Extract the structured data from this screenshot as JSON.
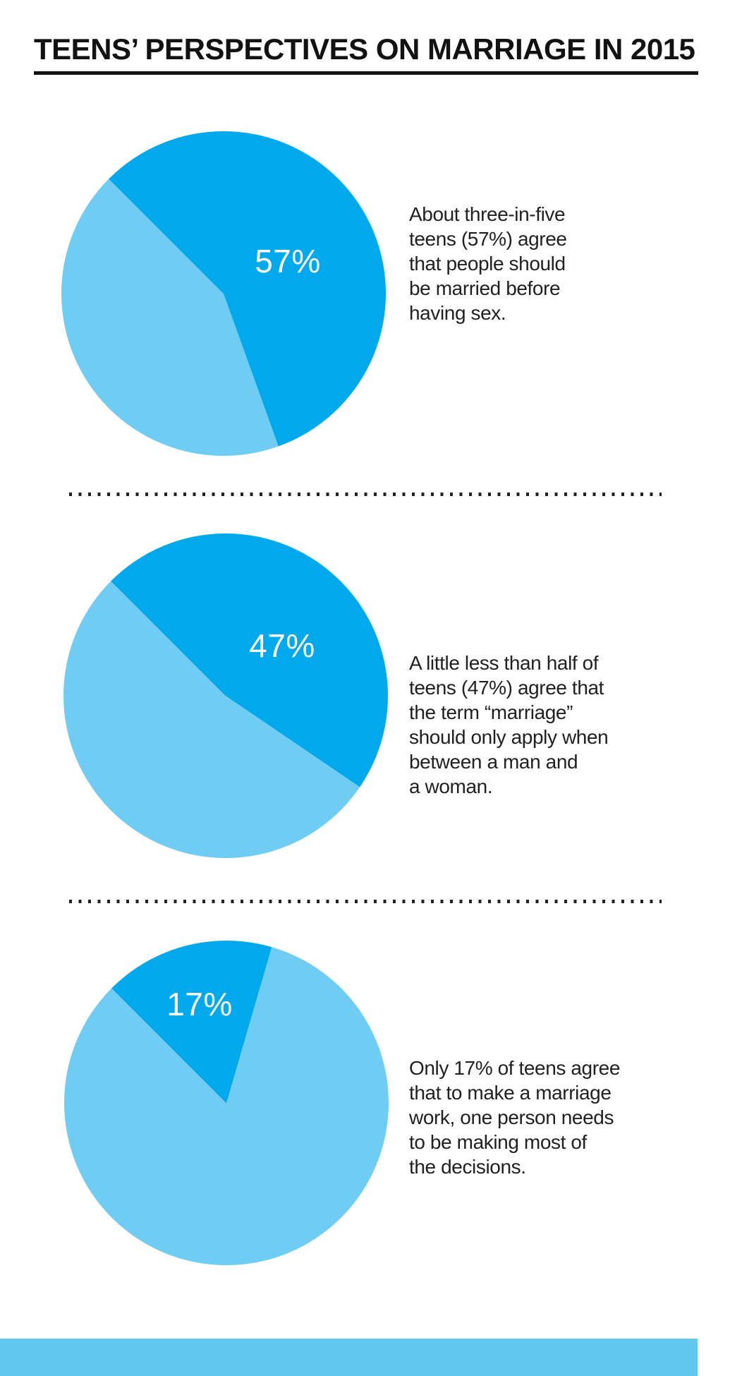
{
  "title": "TEENS’ PERSPECTIVES ON MARRIAGE IN 2015",
  "colors": {
    "dark_blue": "#00a9ec",
    "light_blue": "#6fcdf4",
    "title_text": "#121212",
    "body_text": "#212121",
    "separator_dot": "#222222",
    "pie_label_text": "#ffffff",
    "footer_bar": "#63c6ee",
    "background": "#ffffff"
  },
  "chart_data": [
    {
      "type": "pie",
      "values": [
        57,
        43
      ],
      "data_label": "57%",
      "start_angle_deg": -45,
      "colors": [
        "#00a9ec",
        "#6fcdf4"
      ],
      "label_color": "#ffffff",
      "legend": "none",
      "caption": "About three-in-five\nteens (57%) agree\nthat people should\nbe married before\nhaving sex."
    },
    {
      "type": "pie",
      "values": [
        47,
        53
      ],
      "data_label": "47%",
      "start_angle_deg": -45,
      "colors": [
        "#00a9ec",
        "#6fcdf4"
      ],
      "label_color": "#ffffff",
      "legend": "none",
      "caption": "A little less than half of\nteens (47%) agree that\nthe term “marriage”\nshould only apply when\nbetween a man and\na woman."
    },
    {
      "type": "pie",
      "values": [
        17,
        83
      ],
      "data_label": "17%",
      "start_angle_deg": -45,
      "colors": [
        "#00a9ec",
        "#6fcdf4"
      ],
      "label_color": "#ffffff",
      "legend": "none",
      "caption": "Only 17% of teens agree\nthat to make a marriage\nwork, one person needs\nto be making most of\nthe decisions."
    }
  ]
}
